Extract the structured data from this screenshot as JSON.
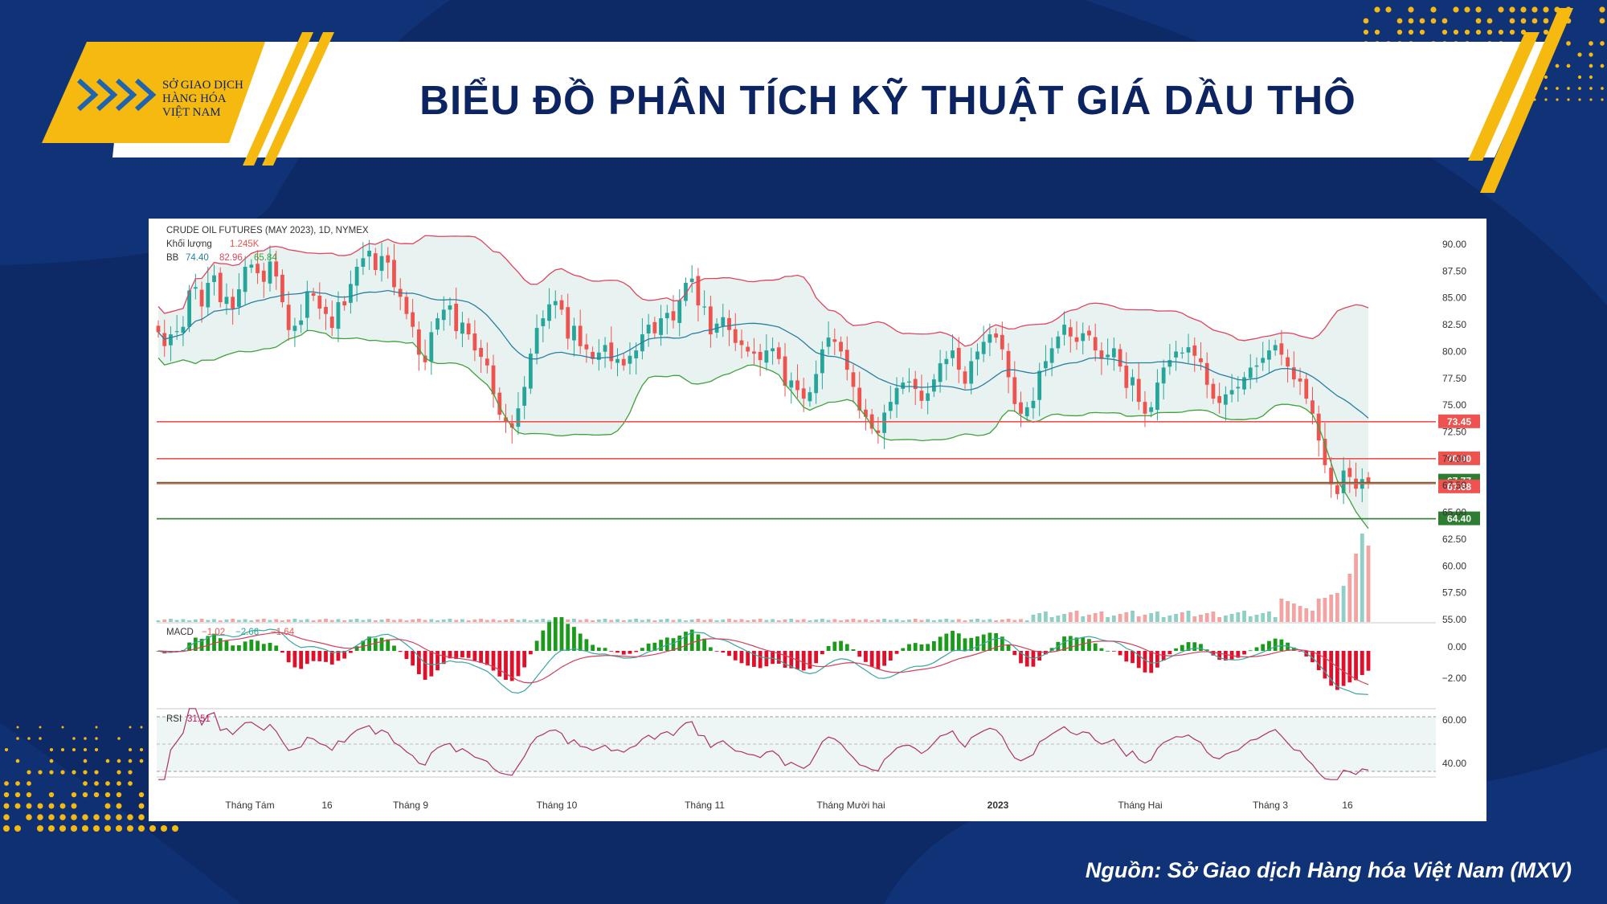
{
  "header": {
    "title": "BIỂU ĐỒ PHÂN TÍCH KỸ THUẬT GIÁ DẦU THÔ",
    "logo_lines": [
      "SỞ GIAO DỊCH",
      "HÀNG HÓA",
      "VIỆT NAM"
    ]
  },
  "footer": {
    "source": "Nguồn: Sở Giao dịch Hàng hóa Việt Nam (MXV)"
  },
  "colors": {
    "background": "#0d2a66",
    "accent_yellow": "#f5b90f",
    "title_navy": "#0c2461",
    "bull": "#26a69a",
    "bear": "#ef5350",
    "bb_upper": "#e0455f",
    "bb_lower": "#3fa23a",
    "bb_basis": "#2a7fa0"
  },
  "chart_data": {
    "type": "candlestick",
    "legend": {
      "title": "CRUDE OIL FUTURES (MAY 2023), 1D, NYMEX",
      "volume_label": "Khối lượng",
      "volume_value": "1.245K",
      "bb_label": "BB",
      "bb_basis": "74.40",
      "bb_upper": "82.96",
      "bb_lower": "65.84",
      "macd_label": "MACD",
      "macd_hist": "−1.02",
      "macd_line": "−2.66",
      "macd_signal": "−1.64",
      "rsi_label": "RSI",
      "rsi_value": "31.51"
    },
    "price_axis": {
      "min": 55,
      "max": 90,
      "ticks": [
        "90.00",
        "87.50",
        "85.00",
        "82.50",
        "80.00",
        "77.50",
        "75.00",
        "72.50",
        "70.00",
        "67.50",
        "65.00",
        "62.50",
        "60.00",
        "57.50",
        "55.00"
      ]
    },
    "horizontal_levels": [
      {
        "value": 73.45,
        "label": "73.45",
        "color": "#ef5350"
      },
      {
        "value": 70.0,
        "label": "70.00",
        "color": "#ef5350"
      },
      {
        "value": 67.77,
        "label": "67.77",
        "color": "#2e7d32"
      },
      {
        "value": 67.68,
        "label": "67.68",
        "color": "#ef5350"
      },
      {
        "value": 64.4,
        "label": "64.40",
        "color": "#2e7d32"
      }
    ],
    "macd_axis": {
      "ticks": [
        "0.00",
        "−2.00"
      ]
    },
    "rsi_axis": {
      "ticks": [
        "60.00",
        "40.00"
      ]
    },
    "time_axis": [
      "Tháng Tám",
      "16",
      "Tháng 9",
      "Tháng 10",
      "Tháng 11",
      "Tháng Mười hai",
      "2023",
      "Tháng Hai",
      "Tháng 3",
      "16"
    ],
    "close_series": [
      81.8,
      80.5,
      81.6,
      81.9,
      82.3,
      85.7,
      86.0,
      84.2,
      86.4,
      87.1,
      84.6,
      85.1,
      84.0,
      85.8,
      87.9,
      88.1,
      87.3,
      86.5,
      88.4,
      87.0,
      84.6,
      82.0,
      82.4,
      82.9,
      85.6,
      85.2,
      84.0,
      83.5,
      82.2,
      84.6,
      84.3,
      86.3,
      87.9,
      88.7,
      89.4,
      87.6,
      88.9,
      88.3,
      86.0,
      85.1,
      83.5,
      82.3,
      79.7,
      79.0,
      81.8,
      83.1,
      83.9,
      84.3,
      81.9,
      82.7,
      81.6,
      80.1,
      79.5,
      78.7,
      76.0,
      74.1,
      73.4,
      72.9,
      74.7,
      76.7,
      79.8,
      82.2,
      83.1,
      84.4,
      84.7,
      83.9,
      81.2,
      82.4,
      80.5,
      80.2,
      79.3,
      79.9,
      80.6,
      79.1,
      79.3,
      78.7,
      79.6,
      80.1,
      81.6,
      82.5,
      81.7,
      83.1,
      83.6,
      82.9,
      84.8,
      86.4,
      86.8,
      84.3,
      84.2,
      81.6,
      82.6,
      83.2,
      82.0,
      80.8,
      80.6,
      80.0,
      79.8,
      79.2,
      80.1,
      80.3,
      79.3,
      76.8,
      77.3,
      76.4,
      75.6,
      76.2,
      77.9,
      80.2,
      81.3,
      80.9,
      80.0,
      78.3,
      76.7,
      74.5,
      73.9,
      72.8,
      72.4,
      74.3,
      75.3,
      76.6,
      77.1,
      77.2,
      76.5,
      75.4,
      76.1,
      77.4,
      78.9,
      79.3,
      80.1,
      78.3,
      77.0,
      79.1,
      80.0,
      80.9,
      81.6,
      81.3,
      80.2,
      77.6,
      75.1,
      74.2,
      74.8,
      75.4,
      78.2,
      79.1,
      80.3,
      81.4,
      82.5,
      81.4,
      80.9,
      81.7,
      81.5,
      80.1,
      79.3,
      79.7,
      80.3,
      78.6,
      76.6,
      77.6,
      75.3,
      74.2,
      74.8,
      77.1,
      78.5,
      79.2,
      80.0,
      79.9,
      80.4,
      79.6,
      79.0,
      76.9,
      75.6,
      75.2,
      76.0,
      76.4,
      76.7,
      77.6,
      78.5,
      78.7,
      79.4,
      80.1,
      80.6,
      79.7,
      78.6,
      77.4,
      77.2,
      75.6,
      74.2,
      71.7,
      69.4,
      67.6,
      66.7,
      68.9,
      68.3,
      67.2,
      68.1,
      67.7
    ]
  }
}
